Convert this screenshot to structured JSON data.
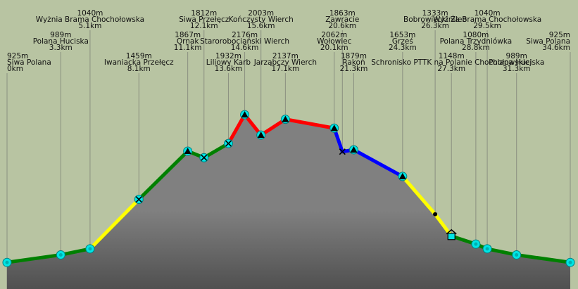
{
  "chart_data": {
    "type": "profile",
    "categories": [
      "Siwa Polana",
      "Polana Huciska",
      "Wyżnia Brama Chochołowska",
      "Iwaniacka Przełęcz",
      "Ornak",
      "Siwa Przełęcz",
      "Liliowy Karb",
      "Starorobociański Wierch",
      "Kończysty Wierch",
      "Jarząbczy Wierch",
      "Wołowiec",
      "Zawracie",
      "Rakoń",
      "Grześ",
      "Bobrowiecki Żleb",
      "Schronisko PTTK na Polanie Chochołowskiej",
      "Polana Trzydniówka",
      "Wyżnia Brama Chochołowska",
      "Polana Huciska",
      "Siwa Polana"
    ],
    "x": [
      0,
      3.3,
      5.1,
      8.1,
      11.1,
      12.1,
      13.6,
      14.6,
      15.6,
      17.1,
      20.1,
      20.6,
      21.3,
      24.3,
      26.3,
      27.3,
      28.8,
      29.5,
      31.3,
      34.6
    ],
    "x_labels": [
      "0km",
      "3.3km",
      "5.1km",
      "8.1km",
      "11.1km",
      "12.1km",
      "13.6km",
      "14.6km",
      "15.6km",
      "17.1km",
      "20.1km",
      "20.6km",
      "21.3km",
      "24.3km",
      "26.3km",
      "27.3km",
      "28.8km",
      "29.5km",
      "31.3km",
      "34.6km"
    ],
    "values": [
      925,
      989,
      1040,
      1459,
      1867,
      1812,
      1932,
      2176,
      2003,
      2137,
      2062,
      1863,
      1879,
      1653,
      1333,
      1148,
      1080,
      1040,
      989,
      925
    ],
    "value_labels": [
      "925m",
      "989m",
      "1040m",
      "1459m",
      "1867m",
      "1812m",
      "1932m",
      "2176m",
      "2003m",
      "2137m",
      "2062m",
      "1863m",
      "1879m",
      "1653m",
      "1333m",
      "1148m",
      "1080m",
      "1040m",
      "989m",
      "925m"
    ],
    "markers": [
      "circle",
      "circle",
      "circle",
      "pass",
      "peak",
      "pass",
      "pass",
      "peak",
      "peak",
      "peak",
      "peak",
      "cross",
      "peak",
      "peak",
      "dot",
      "hut",
      "circle",
      "circle",
      "circle",
      "circle"
    ],
    "segment_colors": [
      "#008000",
      "#008000",
      "#ffff00",
      "#008000",
      "#008000",
      "#008000",
      "#ff0000",
      "#ff0000",
      "#ff0000",
      "#ff0000",
      "#0000ff",
      "#0000ff",
      "#0000ff",
      "#ffff00",
      "#ffff00",
      "#008000",
      "#008000",
      "#008000",
      "#008000"
    ],
    "xlim": [
      0,
      34.6
    ],
    "ylim": [
      700,
      3147
    ]
  }
}
